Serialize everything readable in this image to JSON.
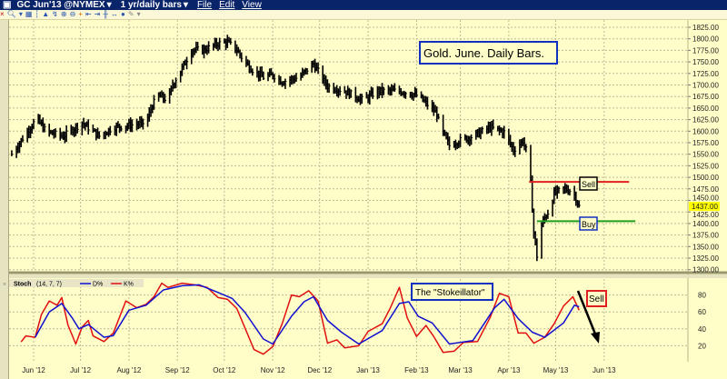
{
  "window": {
    "symbol": "GC Jun'13 @NYMEX",
    "timeframe": "1 yr/daily bars",
    "menu": [
      "File",
      "Edit",
      "View"
    ],
    "toolbar_icons": [
      "close-icon",
      "zoom-icon",
      "dropdown-icon",
      "chart-type-icon",
      "bar-icon",
      "mountain-icon",
      "draw-icon",
      "zoom-in-icon",
      "zoom-out-icon",
      "crosshair-icon",
      "scroll-left-icon",
      "scroll-right-icon",
      "center-icon",
      "expand-icon",
      "color-icon",
      "wrench-icon",
      "dropdown-icon"
    ]
  },
  "colors": {
    "background": "#fffdc8",
    "price_bars": "#000000",
    "k_line": "#e01010",
    "d_line": "#1010d0",
    "sell_line": "#e02020",
    "buy_line": "#20a020",
    "last_price_highlight": "#ffff00",
    "titlebar": "#0a246a"
  },
  "chart_data": [
    {
      "type": "ohlc-bar",
      "title": "Gold. June. Daily Bars.",
      "y_ticks": [
        "1825.00",
        "1800.00",
        "1775.00",
        "1750.00",
        "1725.00",
        "1700.00",
        "1675.00",
        "1650.00",
        "1625.00",
        "1600.00",
        "1575.00",
        "1550.00",
        "1525.00",
        "1500.00",
        "1475.00",
        "1450.00",
        "1425.00",
        "1400.00",
        "1375.00",
        "1350.00",
        "1325.00",
        "1300.00"
      ],
      "ylim": [
        1300,
        1825
      ],
      "last_price": "1437.00",
      "grid": true,
      "closes": [
        [
          "2012-05-18",
          1550
        ],
        [
          "2012-06-03",
          1628
        ],
        [
          "2012-06-09",
          1599
        ],
        [
          "2012-06-20",
          1589
        ],
        [
          "2012-07-02",
          1618
        ],
        [
          "2012-07-13",
          1589
        ],
        [
          "2012-07-22",
          1608
        ],
        [
          "2012-07-31",
          1612
        ],
        [
          "2012-08-12",
          1618
        ],
        [
          "2012-08-16",
          1657
        ],
        [
          "2012-08-20",
          1677
        ],
        [
          "2012-08-26",
          1667
        ],
        [
          "2012-08-29",
          1701
        ],
        [
          "2012-09-04",
          1736
        ],
        [
          "2012-09-10",
          1776
        ],
        [
          "2012-09-18",
          1776
        ],
        [
          "2012-09-27",
          1790
        ],
        [
          "2012-10-03",
          1793
        ],
        [
          "2012-10-09",
          1776
        ],
        [
          "2012-10-14",
          1750
        ],
        [
          "2012-10-20",
          1730
        ],
        [
          "2012-10-26",
          1717
        ],
        [
          "2012-11-01",
          1722
        ],
        [
          "2012-11-07",
          1707
        ],
        [
          "2012-11-18",
          1717
        ],
        [
          "2012-11-27",
          1746
        ],
        [
          "2012-12-06",
          1697
        ],
        [
          "2012-12-17",
          1687
        ],
        [
          "2012-12-29",
          1667
        ],
        [
          "2013-01-07",
          1687
        ],
        [
          "2013-01-21",
          1687
        ],
        [
          "2013-02-02",
          1677
        ],
        [
          "2013-02-14",
          1638
        ],
        [
          "2013-02-16",
          1608
        ],
        [
          "2013-02-22",
          1569
        ],
        [
          "2013-02-28",
          1579
        ],
        [
          "2013-03-09",
          1589
        ],
        [
          "2013-03-20",
          1608
        ],
        [
          "2013-03-29",
          1598
        ],
        [
          "2013-04-04",
          1559
        ],
        [
          "2013-04-10",
          1579
        ],
        [
          "2013-04-14",
          1540
        ],
        [
          "2013-04-17",
          1380
        ],
        [
          "2013-04-19",
          1330
        ],
        [
          "2013-04-21",
          1390
        ],
        [
          "2013-04-24",
          1412
        ],
        [
          "2013-04-27",
          1430
        ],
        [
          "2013-04-30",
          1465
        ],
        [
          "2013-05-06",
          1475
        ],
        [
          "2013-05-12",
          1470
        ],
        [
          "2013-05-16",
          1437
        ]
      ],
      "annotations": {
        "sell_level": {
          "price": 1490,
          "from": "2013-04-14",
          "to": "2013-06-17",
          "label": "Sell"
        },
        "buy_level": {
          "price": 1405,
          "from": "2013-04-19",
          "to": "2013-06-21",
          "label": "Buy"
        }
      }
    },
    {
      "type": "line",
      "title": "The \"Stokeillator\"",
      "indicator": "Stoch",
      "params": "(14, 7, 7)",
      "legend": [
        "D%",
        "K%"
      ],
      "y_ticks": [
        "80",
        "60",
        "40",
        "20"
      ],
      "ylim": [
        0,
        100
      ],
      "grid": true,
      "series": [
        {
          "name": "K%",
          "points": [
            [
              "2012-05-24",
              24.5
            ],
            [
              "2012-05-27",
              31.6
            ],
            [
              "2012-06-02",
              30
            ],
            [
              "2012-06-06",
              57
            ],
            [
              "2012-06-11",
              73
            ],
            [
              "2012-06-16",
              68
            ],
            [
              "2012-06-19",
              77
            ],
            [
              "2012-06-23",
              44.5
            ],
            [
              "2012-06-28",
              22
            ],
            [
              "2012-07-02",
              42
            ],
            [
              "2012-07-06",
              50
            ],
            [
              "2012-07-09",
              31.6
            ],
            [
              "2012-07-16",
              25
            ],
            [
              "2012-07-22",
              35
            ],
            [
              "2012-07-30",
              73
            ],
            [
              "2012-08-06",
              65
            ],
            [
              "2012-08-12",
              69
            ],
            [
              "2012-08-17",
              78
            ],
            [
              "2012-08-22",
              94
            ],
            [
              "2012-08-26",
              89
            ],
            [
              "2012-09-04",
              94
            ],
            [
              "2012-09-12",
              92
            ],
            [
              "2012-09-20",
              89
            ],
            [
              "2012-09-27",
              77
            ],
            [
              "2012-10-03",
              75
            ],
            [
              "2012-10-09",
              64
            ],
            [
              "2012-10-14",
              42
            ],
            [
              "2012-10-20",
              15.5
            ],
            [
              "2012-10-26",
              10
            ],
            [
              "2012-11-01",
              19
            ],
            [
              "2012-11-07",
              46
            ],
            [
              "2012-11-13",
              80
            ],
            [
              "2012-11-18",
              78
            ],
            [
              "2012-11-24",
              85
            ],
            [
              "2012-11-30",
              73
            ],
            [
              "2012-12-06",
              23
            ],
            [
              "2012-12-12",
              27
            ],
            [
              "2012-12-17",
              17.5
            ],
            [
              "2012-12-26",
              20
            ],
            [
              "2013-01-01",
              37
            ],
            [
              "2013-01-10",
              46
            ],
            [
              "2013-01-15",
              64
            ],
            [
              "2013-01-21",
              89
            ],
            [
              "2013-01-26",
              53
            ],
            [
              "2013-02-01",
              31
            ],
            [
              "2013-02-07",
              44
            ],
            [
              "2013-02-12",
              31
            ],
            [
              "2013-02-18",
              12
            ],
            [
              "2013-02-25",
              13.5
            ],
            [
              "2013-03-03",
              24
            ],
            [
              "2013-03-12",
              25
            ],
            [
              "2013-03-20",
              53
            ],
            [
              "2013-03-26",
              82
            ],
            [
              "2013-04-01",
              78
            ],
            [
              "2013-04-07",
              35
            ],
            [
              "2013-04-12",
              35
            ],
            [
              "2013-04-17",
              23
            ],
            [
              "2013-04-24",
              30
            ],
            [
              "2013-04-30",
              46
            ],
            [
              "2013-05-06",
              67
            ],
            [
              "2013-05-12",
              78
            ],
            [
              "2013-05-16",
              62
            ]
          ]
        },
        {
          "name": "D%",
          "points": [
            [
              "2012-06-02",
              30
            ],
            [
              "2012-06-11",
              60
            ],
            [
              "2012-06-19",
              70
            ],
            [
              "2012-06-26",
              52
            ],
            [
              "2012-06-30",
              40
            ],
            [
              "2012-07-06",
              45
            ],
            [
              "2012-07-16",
              30
            ],
            [
              "2012-07-22",
              32
            ],
            [
              "2012-08-01",
              62
            ],
            [
              "2012-08-12",
              68
            ],
            [
              "2012-08-23",
              86
            ],
            [
              "2012-09-04",
              91
            ],
            [
              "2012-09-15",
              92
            ],
            [
              "2012-09-27",
              83
            ],
            [
              "2012-10-06",
              76
            ],
            [
              "2012-10-14",
              60
            ],
            [
              "2012-10-26",
              28
            ],
            [
              "2012-11-01",
              22
            ],
            [
              "2012-11-13",
              55
            ],
            [
              "2012-11-21",
              72
            ],
            [
              "2012-11-27",
              78
            ],
            [
              "2012-12-06",
              50
            ],
            [
              "2012-12-15",
              36
            ],
            [
              "2012-12-26",
              22
            ],
            [
              "2013-01-10",
              38
            ],
            [
              "2013-01-21",
              70
            ],
            [
              "2013-01-27",
              72
            ],
            [
              "2013-02-02",
              55
            ],
            [
              "2013-02-11",
              47
            ],
            [
              "2013-02-22",
              22
            ],
            [
              "2013-03-09",
              26
            ],
            [
              "2013-03-23",
              65
            ],
            [
              "2013-03-29",
              75
            ],
            [
              "2013-04-07",
              52
            ],
            [
              "2013-04-16",
              36
            ],
            [
              "2013-04-24",
              30
            ],
            [
              "2013-05-06",
              47
            ],
            [
              "2013-05-13",
              68
            ],
            [
              "2013-05-16",
              66
            ]
          ]
        }
      ],
      "annotation": {
        "label": "Sell",
        "arrow": "down"
      }
    }
  ],
  "x_axis": {
    "ticks": [
      [
        "2012-06-01",
        "Jun '12"
      ],
      [
        "2012-07-01",
        "Jul '12"
      ],
      [
        "2012-08-01",
        "Aug '12"
      ],
      [
        "2012-09-01",
        "Sep '12"
      ],
      [
        "2012-10-01",
        "Oct '12"
      ],
      [
        "2012-11-01",
        "Nov '12"
      ],
      [
        "2012-12-01",
        "Dec '12"
      ],
      [
        "2013-01-01",
        "Jan '13"
      ],
      [
        "2013-02-01",
        "Feb '13"
      ],
      [
        "2013-03-01",
        "Mar '13"
      ],
      [
        "2013-04-01",
        "Apr '13"
      ],
      [
        "2013-05-01",
        "May '13"
      ],
      [
        "2013-06-01",
        "Jun '13"
      ]
    ]
  }
}
